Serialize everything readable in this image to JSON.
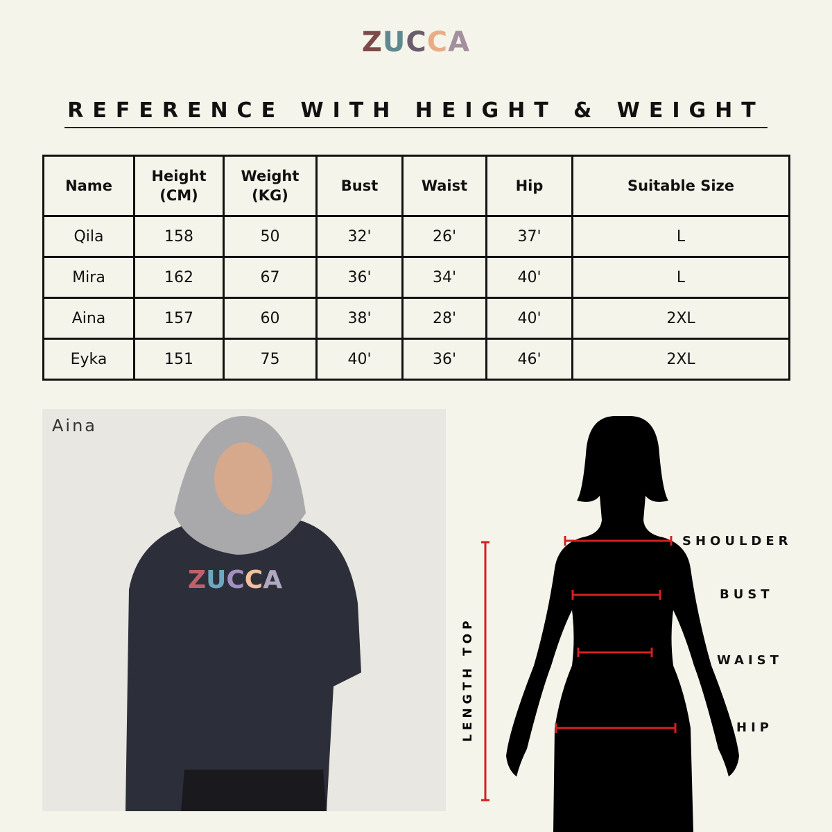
{
  "brand": {
    "letters": [
      {
        "ch": "Z",
        "color": "#7d4a4a"
      },
      {
        "ch": "U",
        "color": "#5e8a8f"
      },
      {
        "ch": "C",
        "color": "#6b5c6c"
      },
      {
        "ch": "C",
        "color": "#e8ad84"
      },
      {
        "ch": "A",
        "color": "#a38f9e"
      }
    ]
  },
  "title": "REFERENCE WITH HEIGHT & WEIGHT",
  "table": {
    "headers": [
      "Name",
      "Height\n(CM)",
      "Weight\n(KG)",
      "Bust",
      "Waist",
      "Hip",
      "Suitable Size"
    ],
    "rows": [
      [
        "Qila",
        "158",
        "50",
        "32'",
        "26'",
        "37'",
        "L"
      ],
      [
        "Mira",
        "162",
        "67",
        "36'",
        "34'",
        "40'",
        "L"
      ],
      [
        "Aina",
        "157",
        "60",
        "38'",
        "28'",
        "40'",
        "2XL"
      ],
      [
        "Eyka",
        "151",
        "75",
        "40'",
        "36'",
        "46'",
        "2XL"
      ]
    ]
  },
  "photo": {
    "label": "Aina",
    "shirt_logo": "ZUCCA"
  },
  "diagram": {
    "shoulder": "SHOULDER",
    "bust": "BUST",
    "waist": "WAIST",
    "hip": "HIP",
    "length": "LENGTH TOP",
    "accent": "#d42020"
  }
}
